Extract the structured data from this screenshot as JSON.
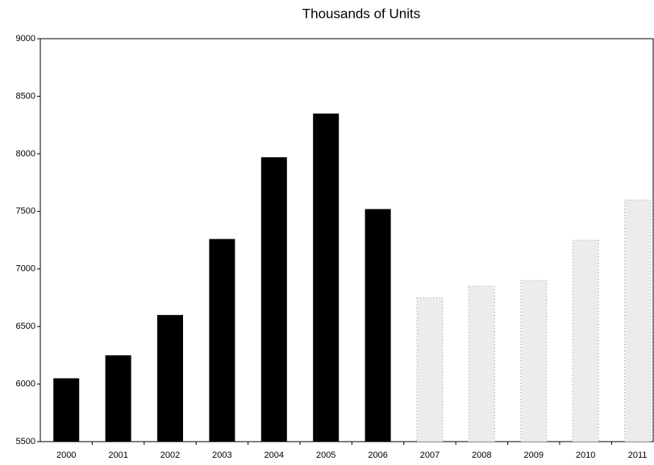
{
  "chart_data": {
    "type": "bar",
    "title": "Thousands of Units",
    "categories": [
      "2000",
      "2001",
      "2002",
      "2003",
      "2004",
      "2005",
      "2006",
      "2007",
      "2008",
      "2009",
      "2010",
      "2011"
    ],
    "values": [
      6050,
      6250,
      6600,
      7260,
      7970,
      8350,
      7520,
      6750,
      6850,
      6900,
      7250,
      7600
    ],
    "colors": [
      "#000000",
      "#000000",
      "#000000",
      "#000000",
      "#000000",
      "#000000",
      "#000000",
      "#ececec",
      "#ececec",
      "#ececec",
      "#ececec",
      "#ececec"
    ],
    "ylim": [
      5500,
      9000
    ],
    "yticks": [
      5500,
      6000,
      6500,
      7000,
      7500,
      8000,
      8500,
      9000
    ],
    "grid": false
  }
}
